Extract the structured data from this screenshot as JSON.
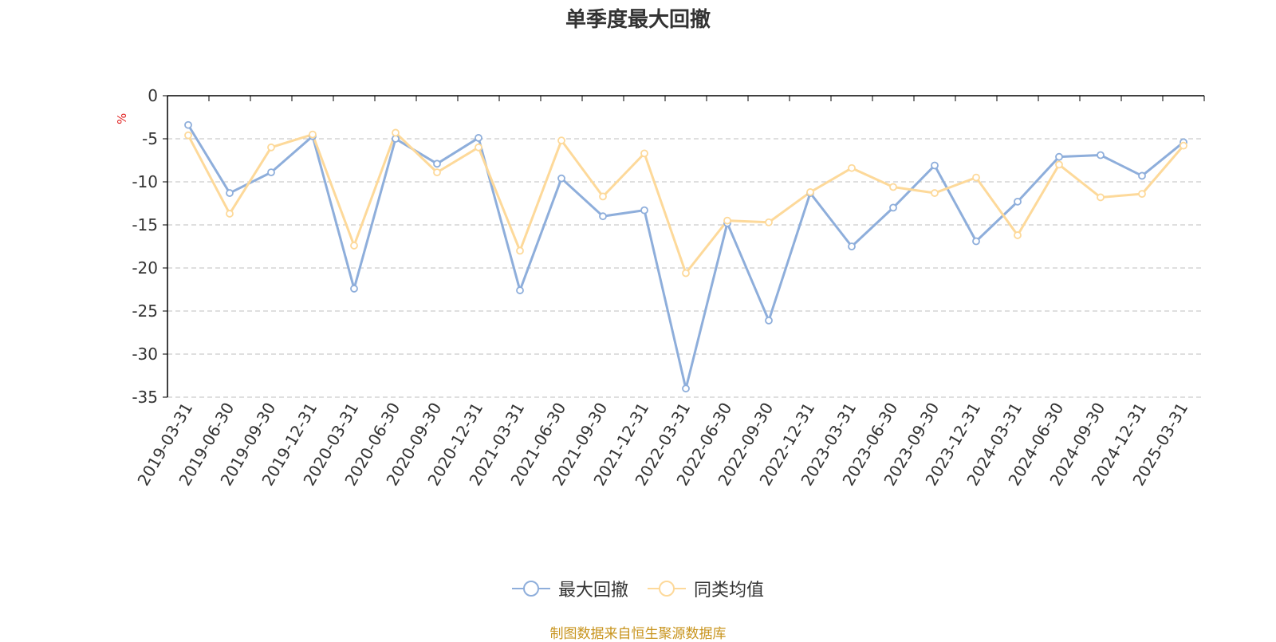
{
  "title": "单季度最大回撤",
  "source": "制图数据来自恒生聚源数据库",
  "colors": {
    "series1": "#8eaedb",
    "series2": "#fdd99a",
    "grid": "#cccccc",
    "axis": "#000000"
  },
  "chart_data": {
    "type": "line",
    "title": "单季度最大回撤",
    "ylabel": "%",
    "ylim": [
      -35,
      0
    ],
    "yticks": [
      0,
      -5,
      -10,
      -15,
      -20,
      -25,
      -30,
      -35
    ],
    "grid": true,
    "legend_position": "bottom",
    "x": [
      "2019-03-31",
      "2019-06-30",
      "2019-09-30",
      "2019-12-31",
      "2020-03-31",
      "2020-06-30",
      "2020-09-30",
      "2020-12-31",
      "2021-03-31",
      "2021-06-30",
      "2021-09-30",
      "2021-12-31",
      "2022-03-31",
      "2022-06-30",
      "2022-09-30",
      "2022-12-31",
      "2023-03-31",
      "2023-06-30",
      "2023-09-30",
      "2023-12-31",
      "2024-03-31",
      "2024-06-30",
      "2024-09-30",
      "2024-12-31",
      "2025-03-31"
    ],
    "series": [
      {
        "name": "最大回撤",
        "color": "#8eaedb",
        "values": [
          -3.4,
          -11.3,
          -8.9,
          -4.7,
          -22.4,
          -5.0,
          -7.9,
          -4.9,
          -22.6,
          -9.6,
          -14.0,
          -13.3,
          -34.0,
          -14.8,
          -26.1,
          -11.3,
          -17.5,
          -13.0,
          -8.1,
          -16.9,
          -12.3,
          -7.1,
          -6.9,
          -9.3,
          -5.4
        ]
      },
      {
        "name": "同类均值",
        "color": "#fdd99a",
        "values": [
          -4.6,
          -13.7,
          -6.0,
          -4.5,
          -17.4,
          -4.3,
          -8.9,
          -6.0,
          -18.0,
          -5.2,
          -11.7,
          -6.7,
          -20.6,
          -14.5,
          -14.7,
          -11.2,
          -8.4,
          -10.6,
          -11.3,
          -9.5,
          -16.2,
          -8.0,
          -11.8,
          -11.4,
          -5.8
        ]
      }
    ]
  }
}
